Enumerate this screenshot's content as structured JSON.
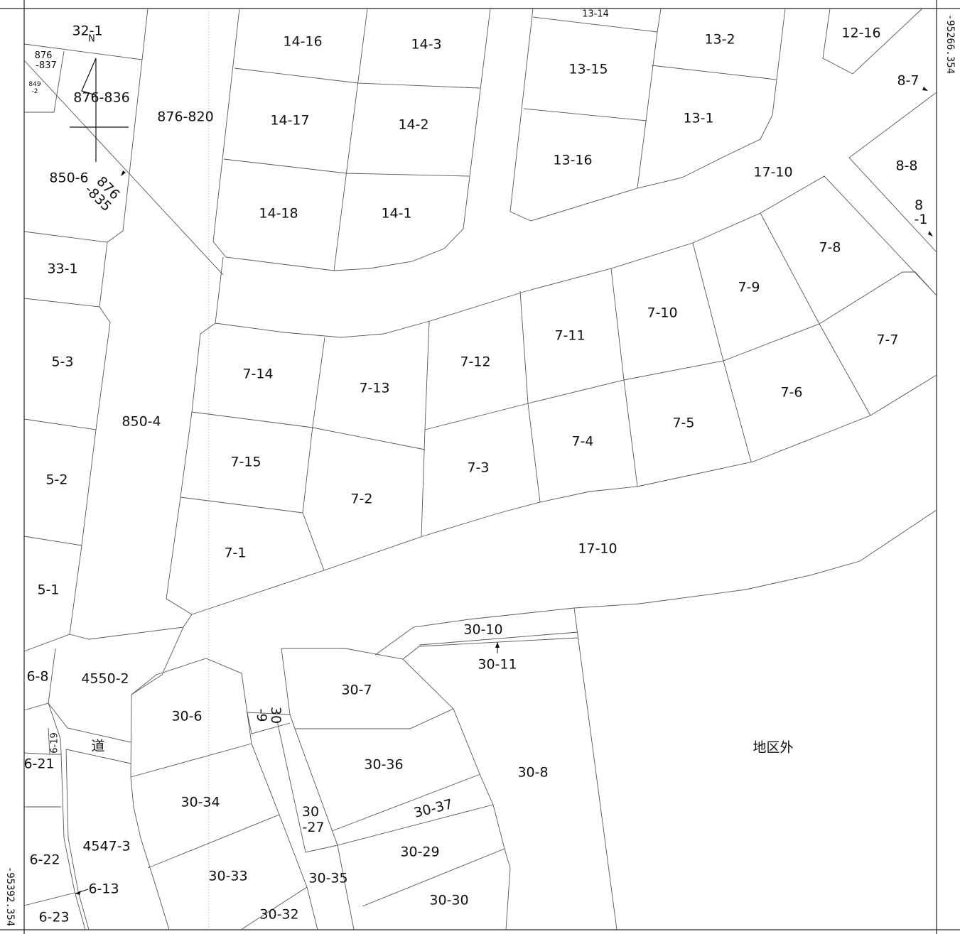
{
  "map": {
    "coordinates": {
      "right": "-95266.354",
      "left": "-95392.354"
    },
    "outside_area_label": "地区外",
    "road_label": "道",
    "north_symbol": "N",
    "parcels": {
      "p32_1": "32-1",
      "p876_837": "876\n-837",
      "p849_2": "849\n-2",
      "p876_836": "876-836",
      "p876_820": "876-820",
      "p850_6": "850-6",
      "p876_835": "876\n-835",
      "p14_16": "14-16",
      "p14_3": "14-3",
      "p14_17": "14-17",
      "p14_2": "14-2",
      "p14_18": "14-18",
      "p14_1": "14-1",
      "p13_14": "13-14",
      "p13_15": "13-15",
      "p13_16": "13-16",
      "p13_2": "13-2",
      "p13_1": "13-1",
      "p12_16": "12-16",
      "p8_7": "8-7",
      "p8_8": "8-8",
      "p8_1": "8\n-1",
      "p17_10_upper": "17-10",
      "p17_10_lower": "17-10",
      "p33_1": "33-1",
      "p5_3": "5-3",
      "p5_2": "5-2",
      "p5_1": "5-1",
      "p850_4": "850-4",
      "p7_1": "7-1",
      "p7_2": "7-2",
      "p7_3": "7-3",
      "p7_4": "7-4",
      "p7_5": "7-5",
      "p7_6": "7-6",
      "p7_7": "7-7",
      "p7_8": "7-8",
      "p7_9": "7-9",
      "p7_10": "7-10",
      "p7_11": "7-11",
      "p7_12": "7-12",
      "p7_13": "7-13",
      "p7_14": "7-14",
      "p7_15": "7-15",
      "p6_8": "6-8",
      "p4550_2": "4550-2",
      "p6_19": "6-19",
      "p6_21": "6-21",
      "p6_22": "6-22",
      "p6_13": "6-13",
      "p6_23": "6-23",
      "p4547_3": "4547-3",
      "p30_6": "30-6",
      "p30_9": "30\n-9",
      "p30_7": "30-7",
      "p30_10": "30-10",
      "p30_11": "30-11",
      "p30_8": "30-8",
      "p30_36": "30-36",
      "p30_37": "30-37",
      "p30_34": "30-34",
      "p30_27": "30\n-27",
      "p30_29": "30-29",
      "p30_30": "30-30",
      "p30_33": "30-33",
      "p30_35": "30-35",
      "p30_32": "30-32"
    }
  }
}
